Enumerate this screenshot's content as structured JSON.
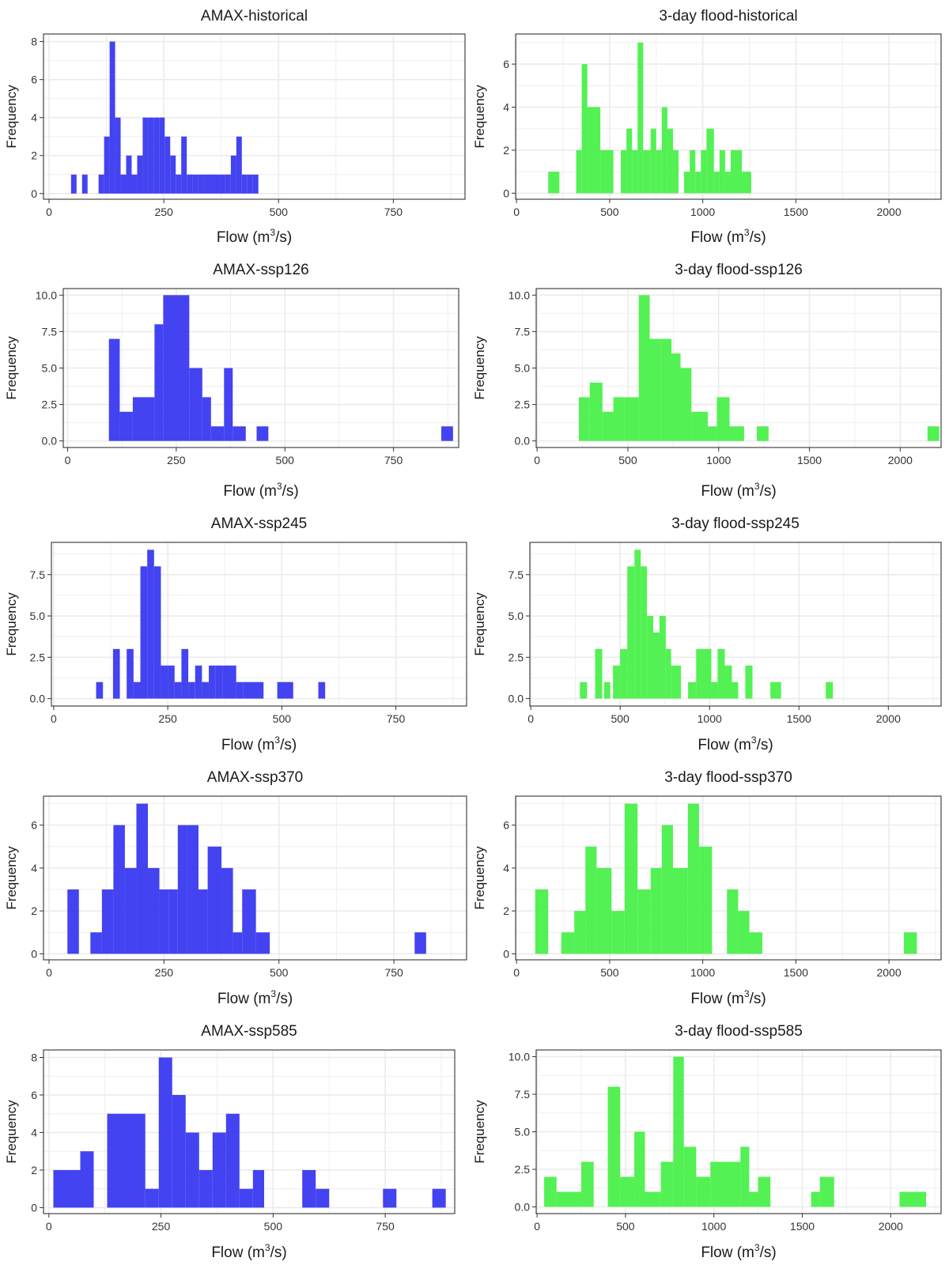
{
  "colors": {
    "amax": "#3333f0",
    "flood": "#44f044",
    "grid": "#ebebeb",
    "border": "#333333"
  },
  "chart_data": [
    {
      "type": "bar",
      "title": "AMAX-historical",
      "xlabel": "Flow (m",
      "xlabel_sup": "3",
      "xlabel_tail": "/s)",
      "ylabel": "Frequency",
      "xlim": [
        -12,
        906
      ],
      "ylim": [
        -0.3,
        8.4
      ],
      "xticks": [
        0,
        250,
        500,
        750
      ],
      "xtick_labels": [
        "0",
        "250",
        "500",
        "750"
      ],
      "yticks": [
        0,
        2,
        4,
        6,
        8
      ],
      "ytick_labels": [
        "0",
        "2",
        "4",
        "6",
        "8"
      ],
      "bins": [
        [
          48,
          60,
          1
        ],
        [
          72,
          84,
          1
        ],
        [
          108,
          120,
          1
        ],
        [
          120,
          132,
          3
        ],
        [
          132,
          144,
          8
        ],
        [
          144,
          156,
          4
        ],
        [
          156,
          168,
          1
        ],
        [
          168,
          180,
          2
        ],
        [
          180,
          192,
          1
        ],
        [
          192,
          204,
          2
        ],
        [
          204,
          216,
          4
        ],
        [
          216,
          228,
          4
        ],
        [
          228,
          240,
          4
        ],
        [
          240,
          252,
          4
        ],
        [
          252,
          264,
          3
        ],
        [
          264,
          276,
          2
        ],
        [
          276,
          288,
          1
        ],
        [
          288,
          300,
          3
        ],
        [
          300,
          312,
          1
        ],
        [
          312,
          324,
          1
        ],
        [
          324,
          336,
          1
        ],
        [
          336,
          348,
          1
        ],
        [
          348,
          360,
          1
        ],
        [
          360,
          372,
          1
        ],
        [
          372,
          384,
          1
        ],
        [
          384,
          396,
          1
        ],
        [
          396,
          408,
          2
        ],
        [
          408,
          420,
          3
        ],
        [
          420,
          432,
          1
        ],
        [
          432,
          444,
          1
        ],
        [
          444,
          456,
          1
        ]
      ]
    },
    {
      "type": "bar",
      "title": "3-day flood-historical",
      "xlabel": "Flow (m",
      "xlabel_sup": "3",
      "xlabel_tail": "/s)",
      "ylabel": "Frequency",
      "xlim": [
        -5,
        2280
      ],
      "ylim": [
        -0.28,
        7.4
      ],
      "xticks": [
        0,
        500,
        1000,
        1500,
        2000
      ],
      "xtick_labels": [
        "0",
        "500",
        "1000",
        "1500",
        "2000"
      ],
      "yticks": [
        0,
        2,
        4,
        6
      ],
      "ytick_labels": [
        "0",
        "2",
        "4",
        "6"
      ],
      "bins": [
        [
          170,
          230,
          1
        ],
        [
          320,
          350,
          2
        ],
        [
          350,
          380,
          6
        ],
        [
          380,
          450,
          4
        ],
        [
          450,
          520,
          2
        ],
        [
          560,
          590,
          2
        ],
        [
          590,
          620,
          3
        ],
        [
          620,
          650,
          2
        ],
        [
          650,
          680,
          7
        ],
        [
          680,
          720,
          2
        ],
        [
          720,
          750,
          3
        ],
        [
          750,
          780,
          2
        ],
        [
          780,
          810,
          4
        ],
        [
          810,
          840,
          3
        ],
        [
          840,
          870,
          2
        ],
        [
          900,
          930,
          1
        ],
        [
          930,
          960,
          2
        ],
        [
          960,
          990,
          1
        ],
        [
          990,
          1020,
          2
        ],
        [
          1020,
          1060,
          3
        ],
        [
          1060,
          1090,
          1
        ],
        [
          1090,
          1120,
          2
        ],
        [
          1120,
          1150,
          1
        ],
        [
          1150,
          1180,
          2
        ],
        [
          1180,
          1210,
          2
        ],
        [
          1210,
          1260,
          1
        ]
      ]
    },
    {
      "type": "bar",
      "title": "AMAX-ssp126",
      "xlabel": "Flow (m",
      "xlabel_sup": "3",
      "xlabel_tail": "/s)",
      "ylabel": "Frequency",
      "xlim": [
        -10,
        900
      ],
      "ylim": [
        -0.45,
        10.45
      ],
      "xticks": [
        0,
        250,
        500,
        750
      ],
      "xtick_labels": [
        "0",
        "250",
        "500",
        "750"
      ],
      "yticks": [
        0,
        2.5,
        5,
        7.5,
        10
      ],
      "ytick_labels": [
        "0.0",
        "2.5",
        "5.0",
        "7.5",
        "10.0"
      ],
      "bins": [
        [
          95,
          120,
          7
        ],
        [
          120,
          150,
          2
        ],
        [
          150,
          200,
          3
        ],
        [
          200,
          220,
          8
        ],
        [
          220,
          280,
          10
        ],
        [
          280,
          310,
          5
        ],
        [
          310,
          330,
          3
        ],
        [
          330,
          360,
          1
        ],
        [
          360,
          380,
          5
        ],
        [
          380,
          410,
          1
        ],
        [
          435,
          462,
          1
        ],
        [
          860,
          887,
          1
        ]
      ]
    },
    {
      "type": "bar",
      "title": "3-day flood-ssp126",
      "xlabel": "Flow (m",
      "xlabel_sup": "3",
      "xlabel_tail": "/s)",
      "ylabel": "Frequency",
      "xlim": [
        -5,
        2225
      ],
      "ylim": [
        -0.45,
        10.45
      ],
      "xticks": [
        0,
        500,
        1000,
        1500,
        2000
      ],
      "xtick_labels": [
        "0",
        "500",
        "1000",
        "1500",
        "2000"
      ],
      "yticks": [
        0,
        2.5,
        5,
        7.5,
        10
      ],
      "ytick_labels": [
        "0.0",
        "2.5",
        "5.0",
        "7.5",
        "10.0"
      ],
      "bins": [
        [
          230,
          290,
          3
        ],
        [
          290,
          360,
          4
        ],
        [
          360,
          420,
          2
        ],
        [
          420,
          480,
          3
        ],
        [
          480,
          560,
          3
        ],
        [
          560,
          620,
          10
        ],
        [
          620,
          680,
          7
        ],
        [
          680,
          740,
          7
        ],
        [
          740,
          790,
          6
        ],
        [
          790,
          850,
          5
        ],
        [
          850,
          940,
          2
        ],
        [
          940,
          990,
          1
        ],
        [
          990,
          1060,
          3
        ],
        [
          1060,
          1140,
          1
        ],
        [
          1210,
          1275,
          1
        ],
        [
          2150,
          2215,
          1
        ]
      ]
    },
    {
      "type": "bar",
      "title": "AMAX-ssp245",
      "xlabel": "Flow (m",
      "xlabel_sup": "3",
      "xlabel_tail": "/s)",
      "ylabel": "Frequency",
      "xlim": [
        -5,
        905
      ],
      "ylim": [
        -0.45,
        9.45
      ],
      "xticks": [
        0,
        250,
        500,
        750
      ],
      "xtick_labels": [
        "0",
        "250",
        "500",
        "750"
      ],
      "yticks": [
        0,
        2.5,
        5,
        7.5
      ],
      "ytick_labels": [
        "0.0",
        "2.5",
        "5.0",
        "7.5"
      ],
      "bins": [
        [
          93,
          108,
          1
        ],
        [
          130,
          145,
          3
        ],
        [
          160,
          175,
          3
        ],
        [
          175,
          190,
          1
        ],
        [
          190,
          205,
          8
        ],
        [
          205,
          220,
          9
        ],
        [
          220,
          235,
          8
        ],
        [
          235,
          250,
          2
        ],
        [
          250,
          265,
          2
        ],
        [
          265,
          280,
          1
        ],
        [
          280,
          295,
          3
        ],
        [
          295,
          310,
          1
        ],
        [
          310,
          325,
          2
        ],
        [
          325,
          340,
          1
        ],
        [
          340,
          355,
          2
        ],
        [
          355,
          370,
          2
        ],
        [
          370,
          385,
          2
        ],
        [
          385,
          400,
          2
        ],
        [
          400,
          415,
          1
        ],
        [
          415,
          460,
          1
        ],
        [
          490,
          525,
          1
        ],
        [
          580,
          595,
          1
        ]
      ]
    },
    {
      "type": "bar",
      "title": "3-day flood-ssp245",
      "xlabel": "Flow (m",
      "xlabel_sup": "3",
      "xlabel_tail": "/s)",
      "ylabel": "Frequency",
      "xlim": [
        -5,
        2295
      ],
      "ylim": [
        -0.45,
        9.45
      ],
      "xticks": [
        0,
        500,
        1000,
        1500,
        2000
      ],
      "xtick_labels": [
        "0",
        "500",
        "1000",
        "1500",
        "2000"
      ],
      "yticks": [
        0,
        2.5,
        5,
        7.5
      ],
      "ytick_labels": [
        "0.0",
        "2.5",
        "5.0",
        "7.5"
      ],
      "bins": [
        [
          275,
          315,
          1
        ],
        [
          360,
          400,
          3
        ],
        [
          410,
          445,
          1
        ],
        [
          460,
          500,
          2
        ],
        [
          500,
          540,
          3
        ],
        [
          540,
          580,
          8
        ],
        [
          580,
          615,
          9
        ],
        [
          615,
          650,
          8
        ],
        [
          650,
          685,
          5
        ],
        [
          685,
          720,
          4
        ],
        [
          720,
          755,
          5
        ],
        [
          755,
          785,
          3
        ],
        [
          785,
          840,
          2
        ],
        [
          880,
          925,
          1
        ],
        [
          925,
          1010,
          3
        ],
        [
          1010,
          1045,
          1
        ],
        [
          1045,
          1085,
          3
        ],
        [
          1085,
          1125,
          2
        ],
        [
          1125,
          1160,
          1
        ],
        [
          1200,
          1240,
          2
        ],
        [
          1340,
          1400,
          1
        ],
        [
          1650,
          1690,
          1
        ]
      ]
    },
    {
      "type": "bar",
      "title": "AMAX-ssp370",
      "xlabel": "Flow (m",
      "xlabel_sup": "3",
      "xlabel_tail": "/s)",
      "ylabel": "Frequency",
      "xlim": [
        -12,
        908
      ],
      "ylim": [
        -0.28,
        7.35
      ],
      "xticks": [
        0,
        250,
        500,
        750
      ],
      "xtick_labels": [
        "0",
        "250",
        "500",
        "750"
      ],
      "yticks": [
        0,
        2,
        4,
        6
      ],
      "ytick_labels": [
        "0",
        "2",
        "4",
        "6"
      ],
      "bins": [
        [
          40,
          65,
          3
        ],
        [
          90,
          115,
          1
        ],
        [
          115,
          140,
          3
        ],
        [
          140,
          165,
          6
        ],
        [
          165,
          190,
          4
        ],
        [
          190,
          215,
          7
        ],
        [
          215,
          240,
          4
        ],
        [
          240,
          260,
          3
        ],
        [
          260,
          280,
          3
        ],
        [
          280,
          300,
          6
        ],
        [
          300,
          325,
          6
        ],
        [
          325,
          345,
          3
        ],
        [
          345,
          375,
          5
        ],
        [
          375,
          400,
          4
        ],
        [
          400,
          420,
          1
        ],
        [
          420,
          450,
          3
        ],
        [
          450,
          480,
          1
        ],
        [
          795,
          820,
          1
        ]
      ]
    },
    {
      "type": "bar",
      "title": "3-day flood-ssp370",
      "xlabel": "Flow (m",
      "xlabel_sup": "3",
      "xlabel_tail": "/s)",
      "ylabel": "Frequency",
      "xlim": [
        -5,
        2280
      ],
      "ylim": [
        -0.28,
        7.35
      ],
      "xticks": [
        0,
        500,
        1000,
        1500,
        2000
      ],
      "xtick_labels": [
        "0",
        "500",
        "1000",
        "1500",
        "2000"
      ],
      "yticks": [
        0,
        2,
        4,
        6
      ],
      "ytick_labels": [
        "0",
        "2",
        "4",
        "6"
      ],
      "bins": [
        [
          100,
          170,
          3
        ],
        [
          240,
          310,
          1
        ],
        [
          310,
          370,
          2
        ],
        [
          370,
          430,
          5
        ],
        [
          430,
          510,
          4
        ],
        [
          510,
          580,
          2
        ],
        [
          580,
          650,
          7
        ],
        [
          650,
          720,
          3
        ],
        [
          720,
          780,
          4
        ],
        [
          780,
          840,
          6
        ],
        [
          840,
          920,
          4
        ],
        [
          920,
          980,
          7
        ],
        [
          980,
          1050,
          5
        ],
        [
          1130,
          1190,
          3
        ],
        [
          1190,
          1250,
          2
        ],
        [
          1250,
          1320,
          1
        ],
        [
          2080,
          2150,
          1
        ]
      ]
    },
    {
      "type": "bar",
      "title": "AMAX-ssp585",
      "xlabel": "Flow (m",
      "xlabel_sup": "3",
      "xlabel_tail": "/s)",
      "ylabel": "Frequency",
      "xlim": [
        -12,
        905
      ],
      "ylim": [
        -0.32,
        8.4
      ],
      "xticks": [
        0,
        250,
        500,
        750
      ],
      "xtick_labels": [
        "0",
        "250",
        "500",
        "750"
      ],
      "yticks": [
        0,
        2,
        4,
        6,
        8
      ],
      "ytick_labels": [
        "0",
        "2",
        "4",
        "6",
        "8"
      ],
      "bins": [
        [
          10,
          70,
          2
        ],
        [
          70,
          100,
          3
        ],
        [
          130,
          215,
          5
        ],
        [
          215,
          245,
          1
        ],
        [
          245,
          275,
          8
        ],
        [
          275,
          305,
          6
        ],
        [
          305,
          335,
          4
        ],
        [
          335,
          365,
          2
        ],
        [
          365,
          395,
          4
        ],
        [
          395,
          425,
          5
        ],
        [
          425,
          455,
          1
        ],
        [
          455,
          480,
          2
        ],
        [
          565,
          595,
          2
        ],
        [
          595,
          625,
          1
        ],
        [
          745,
          775,
          1
        ],
        [
          855,
          885,
          1
        ]
      ]
    },
    {
      "type": "bar",
      "title": "3-day flood-ssp585",
      "xlabel": "Flow (m",
      "xlabel_sup": "3",
      "xlabel_tail": "/s)",
      "ylabel": "Frequency",
      "xlim": [
        -5,
        2285
      ],
      "ylim": [
        -0.45,
        10.45
      ],
      "xticks": [
        0,
        500,
        1000,
        1500,
        2000
      ],
      "xtick_labels": [
        "0",
        "500",
        "1000",
        "1500",
        "2000"
      ],
      "yticks": [
        0,
        2.5,
        5,
        7.5,
        10
      ],
      "ytick_labels": [
        "0.0",
        "2.5",
        "5.0",
        "7.5",
        "10.0"
      ],
      "bins": [
        [
          40,
          110,
          2
        ],
        [
          110,
          250,
          1
        ],
        [
          250,
          320,
          3
        ],
        [
          400,
          470,
          8
        ],
        [
          470,
          550,
          2
        ],
        [
          550,
          610,
          5
        ],
        [
          610,
          700,
          1
        ],
        [
          700,
          770,
          3
        ],
        [
          770,
          830,
          10
        ],
        [
          830,
          900,
          4
        ],
        [
          900,
          980,
          2
        ],
        [
          980,
          1150,
          3
        ],
        [
          1150,
          1200,
          4
        ],
        [
          1200,
          1250,
          1
        ],
        [
          1250,
          1320,
          2
        ],
        [
          1550,
          1600,
          1
        ],
        [
          1600,
          1680,
          2
        ],
        [
          2050,
          2200,
          1
        ]
      ]
    }
  ]
}
